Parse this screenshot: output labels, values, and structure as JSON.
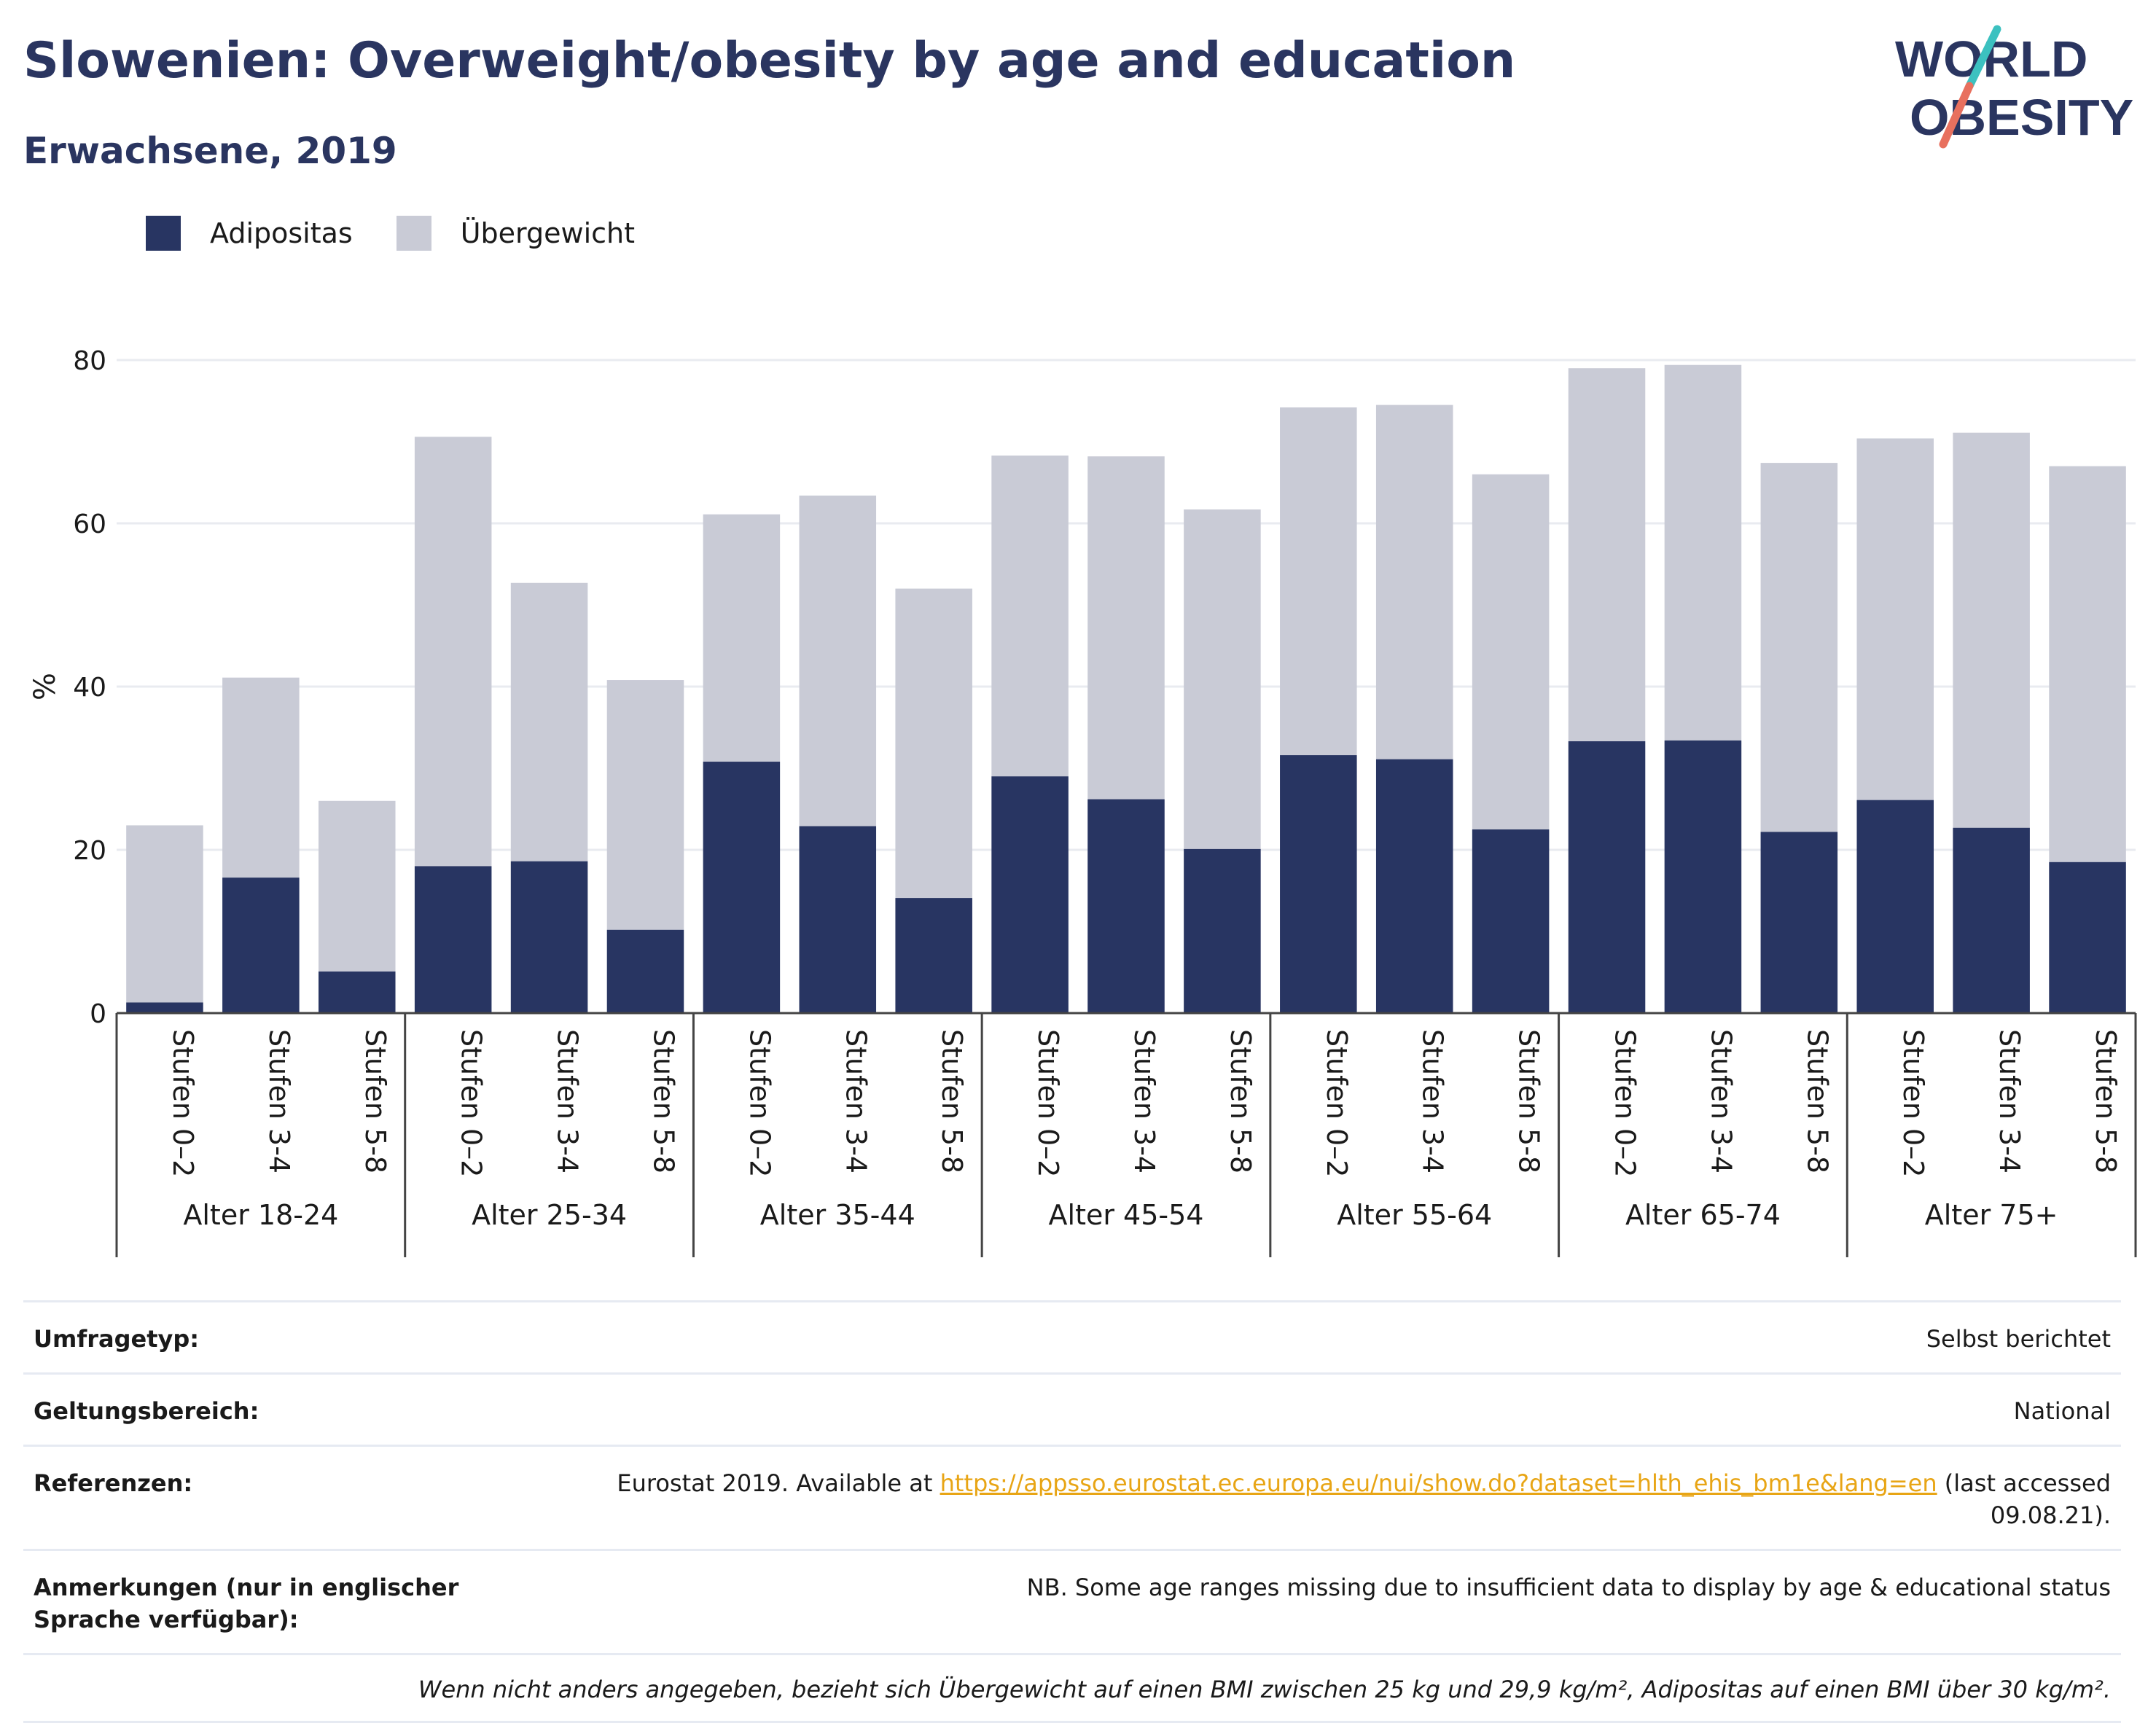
{
  "header": {
    "title": "Slowenien: Overweight/obesity by age and education",
    "subtitle": "Erwachsene, 2019"
  },
  "logo": {
    "line1": "WORLD",
    "line2": "OBESITY"
  },
  "legend": {
    "items": [
      {
        "label": "Adipositas",
        "color": "#283562"
      },
      {
        "label": "Übergewicht",
        "color": "#c9cbd6"
      }
    ]
  },
  "chart_data": {
    "type": "bar",
    "stacked": true,
    "ylabel": "%",
    "ylim": [
      0,
      80
    ],
    "yticks": [
      0,
      20,
      40,
      60,
      80
    ],
    "grid": true,
    "legend_position": "top-left",
    "groups": [
      "Alter 18-24",
      "Alter 25-34",
      "Alter 35-44",
      "Alter 45-54",
      "Alter 55-64",
      "Alter 65-74",
      "Alter 75+"
    ],
    "subcategories": [
      "Stufen 0–2",
      "Stufen 3-4",
      "Stufen 5-8"
    ],
    "series": [
      {
        "name": "Adipositas",
        "color": "#283562",
        "values": [
          1.3,
          16.6,
          5.1,
          18.0,
          18.6,
          10.2,
          30.8,
          22.9,
          14.1,
          29.0,
          26.2,
          20.1,
          31.6,
          31.1,
          22.5,
          33.3,
          33.4,
          22.2,
          26.1,
          22.7,
          18.5
        ]
      },
      {
        "name": "Übergewicht",
        "color": "#c9cbd6",
        "values": [
          21.7,
          24.5,
          20.9,
          52.6,
          34.1,
          30.6,
          30.3,
          40.5,
          37.9,
          39.3,
          42.0,
          41.6,
          42.6,
          43.4,
          43.5,
          45.7,
          46.0,
          45.2,
          44.3,
          48.4,
          48.5
        ]
      }
    ],
    "totals": [
      23.0,
      41.1,
      26.0,
      70.6,
      52.7,
      40.8,
      61.1,
      63.4,
      52.0,
      68.3,
      68.2,
      61.7,
      74.2,
      74.5,
      66.0,
      79.0,
      79.4,
      67.4,
      70.4,
      71.1,
      67.0
    ]
  },
  "info": {
    "rows": [
      {
        "label": "Umfragetyp:",
        "value": "Selbst berichtet"
      },
      {
        "label": "Geltungsbereich:",
        "value": "National"
      },
      {
        "label": "Referenzen:",
        "value_prefix": "Eurostat 2019. Available at ",
        "link": "https://appsso.eurostat.ec.europa.eu/nui/show.do?dataset=hlth_ehis_bm1e&lang=en",
        "value_suffix": " (last accessed 09.08.21)."
      },
      {
        "label": "Anmerkungen (nur in englischer Sprache verfügbar):",
        "value": "NB. Some age ranges missing due to insufficient data to display by age & educational status"
      }
    ],
    "note": "Wenn nicht anders angegeben, bezieht sich Übergewicht auf einen BMI zwischen 25 kg und 29,9 kg/m², Adipositas auf einen BMI über 30 kg/m²."
  }
}
